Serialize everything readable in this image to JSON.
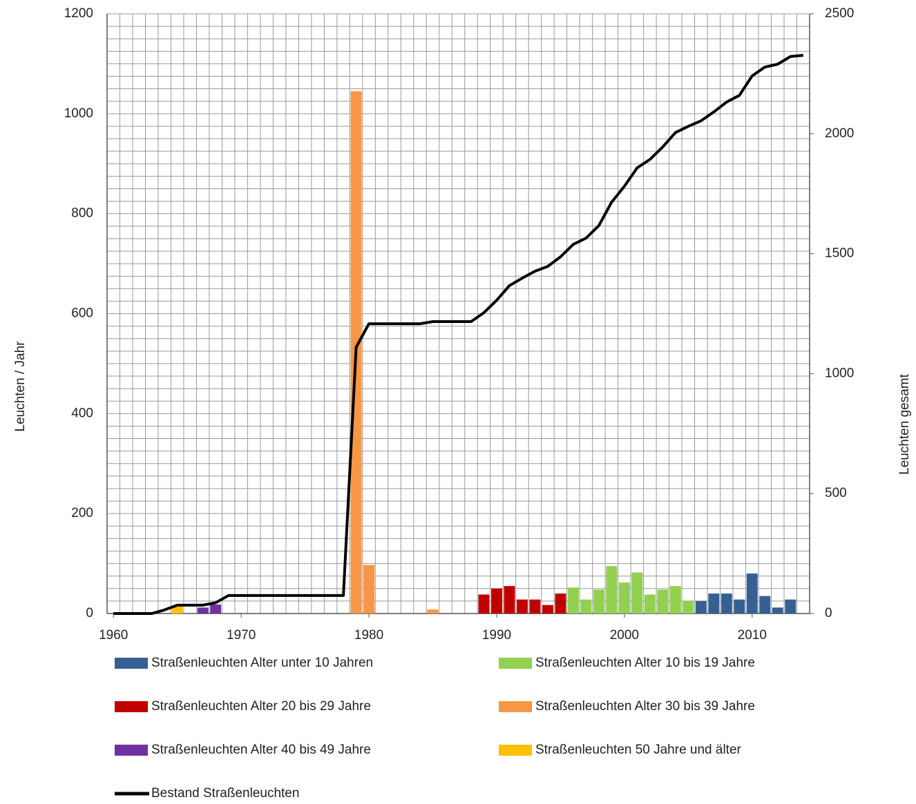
{
  "chart_data": {
    "type": "bar",
    "xlim": [
      1959.5,
      2014.5
    ],
    "xticks": [
      1960,
      1970,
      1980,
      1990,
      2000,
      2010
    ],
    "ylim": [
      0,
      1200
    ],
    "yticks": [
      0,
      200,
      400,
      600,
      800,
      1000,
      1200
    ],
    "y2lim": [
      0,
      2500
    ],
    "y2ticks": [
      0,
      500,
      1000,
      1500,
      2000,
      2500
    ],
    "ylabel": "Leuchten / Jahr",
    "y2label": "Leuchten gesamt",
    "grid": true,
    "legend": "bottom",
    "series": [
      {
        "name": "Straßenleuchten Alter unter 10 Jahren",
        "color": "#376092",
        "x": [
          2006,
          2007,
          2008,
          2009,
          2010,
          2011,
          2012,
          2013
        ],
        "values": [
          25,
          40,
          40,
          28,
          80,
          35,
          12,
          28
        ]
      },
      {
        "name": "Straßenleuchten Alter 10 bis 19 Jahre",
        "color": "#92d050",
        "x": [
          1996,
          1997,
          1998,
          1999,
          2000,
          2001,
          2002,
          2003,
          2004,
          2005
        ],
        "values": [
          52,
          28,
          48,
          95,
          62,
          82,
          38,
          48,
          55,
          25
        ]
      },
      {
        "name": "Straßenleuchten Alter 20 bis 29 Jahre",
        "color": "#c00000",
        "x": [
          1989,
          1990,
          1991,
          1992,
          1993,
          1994,
          1995
        ],
        "values": [
          38,
          50,
          55,
          28,
          28,
          17,
          40
        ]
      },
      {
        "name": "Straßenleuchten Alter 30 bis 39 Jahre",
        "color": "#f79646",
        "x": [
          1979,
          1980,
          1985
        ],
        "values": [
          1045,
          97,
          8
        ]
      },
      {
        "name": "Straßenleuchten Alter 40 bis 49 Jahre",
        "color": "#7030a0",
        "x": [
          1967,
          1968
        ],
        "values": [
          12,
          18
        ]
      },
      {
        "name": "Straßenleuchten 50 Jahre und älter",
        "color": "#ffc000",
        "x": [
          1965
        ],
        "values": [
          15
        ]
      },
      {
        "name": "Bestand Straßenleuchten",
        "color": "#000000",
        "type": "line",
        "axis": "y2",
        "x": [
          1960,
          1961,
          1962,
          1963,
          1964,
          1965,
          1966,
          1967,
          1968,
          1969,
          1970,
          1971,
          1972,
          1973,
          1974,
          1975,
          1976,
          1977,
          1978,
          1979,
          1980,
          1981,
          1982,
          1983,
          1984,
          1985,
          1986,
          1987,
          1988,
          1989,
          1990,
          1991,
          1992,
          1993,
          1994,
          1995,
          1996,
          1997,
          1998,
          1999,
          2000,
          2001,
          2002,
          2003,
          2004,
          2005,
          2006,
          2007,
          2008,
          2009,
          2010,
          2011,
          2012,
          2013,
          2014
        ],
        "values": [
          0,
          0,
          0,
          0,
          15,
          35,
          35,
          35,
          45,
          75,
          75,
          75,
          75,
          75,
          75,
          75,
          75,
          75,
          75,
          1110,
          1208,
          1208,
          1208,
          1208,
          1208,
          1217,
          1217,
          1217,
          1217,
          1254,
          1306,
          1367,
          1398,
          1427,
          1447,
          1487,
          1539,
          1565,
          1617,
          1715,
          1781,
          1858,
          1893,
          1945,
          2005,
          2031,
          2054,
          2091,
          2132,
          2160,
          2241,
          2278,
          2290,
          2322,
          2327
        ]
      }
    ]
  }
}
